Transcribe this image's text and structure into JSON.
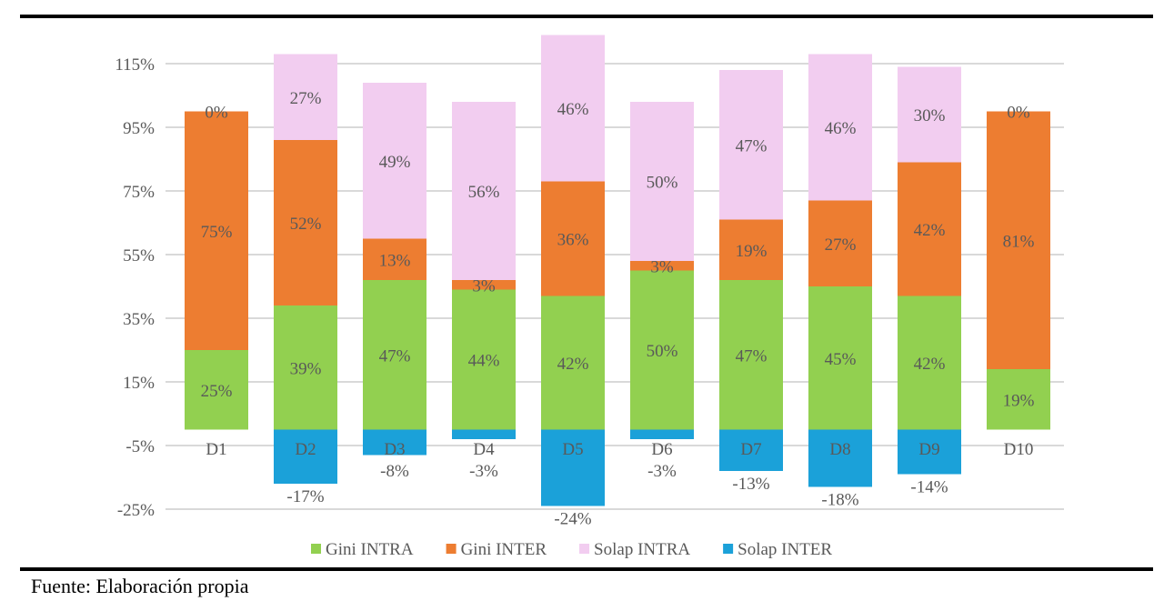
{
  "chart_data": {
    "type": "bar",
    "stacked": true,
    "categories": [
      "D1",
      "D2",
      "D3",
      "D4",
      "D5",
      "D6",
      "D7",
      "D8",
      "D9",
      "D10"
    ],
    "series": [
      {
        "name": "Gini INTRA",
        "color": "#92d050",
        "values": [
          25,
          39,
          47,
          44,
          42,
          50,
          47,
          45,
          42,
          19
        ]
      },
      {
        "name": "Gini INTER",
        "color": "#ed7d31",
        "values": [
          75,
          52,
          13,
          3,
          36,
          3,
          19,
          27,
          42,
          81
        ]
      },
      {
        "name": "Solap INTRA",
        "color": "#f2cdf0",
        "values": [
          0,
          27,
          49,
          56,
          46,
          50,
          47,
          46,
          30,
          0
        ]
      },
      {
        "name": "Solap INTER",
        "color": "#1ba1d9",
        "values": [
          null,
          -17,
          -8,
          -3,
          -24,
          -3,
          -13,
          -18,
          -14,
          null
        ]
      }
    ],
    "yticks": [
      "115%",
      "95%",
      "75%",
      "55%",
      "35%",
      "15%",
      "-5%",
      "-25%"
    ],
    "ylim": [
      -25,
      115
    ],
    "grid": true,
    "legend": "bottom",
    "unit": "%"
  },
  "footer": "Fuente: Elaboración propia"
}
